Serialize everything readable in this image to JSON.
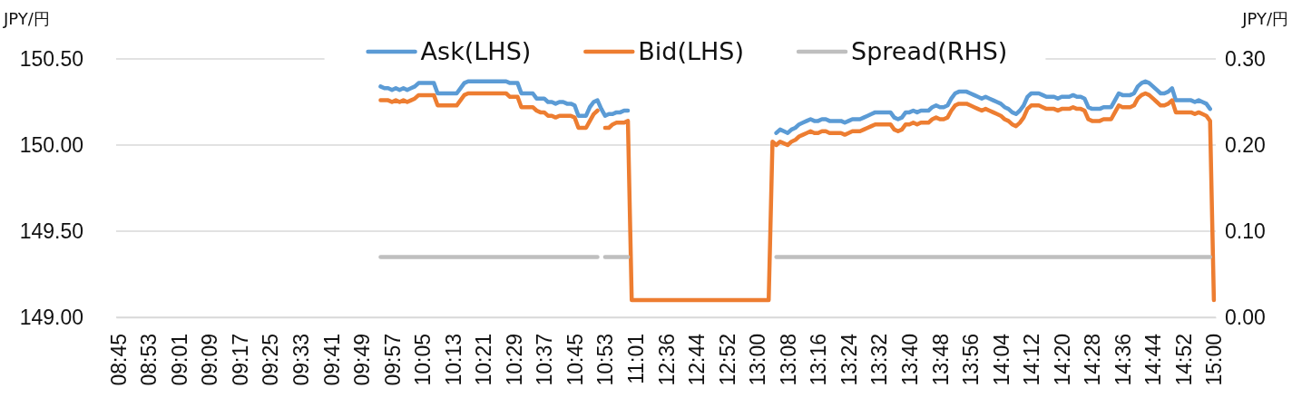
{
  "chart_data": {
    "type": "line",
    "ylabel": "JPY/円",
    "y2label": "JPY/円",
    "categories": [
      "08:45",
      null,
      null,
      null,
      null,
      null,
      null,
      null,
      "08:53",
      null,
      null,
      null,
      null,
      null,
      null,
      null,
      "09:01",
      null,
      null,
      null,
      null,
      null,
      null,
      null,
      "09:09",
      null,
      null,
      null,
      null,
      null,
      null,
      null,
      "09:17",
      null,
      null,
      null,
      null,
      null,
      null,
      null,
      "09:25",
      null,
      null,
      null,
      null,
      null,
      null,
      null,
      "09:33",
      null,
      null,
      null,
      null,
      null,
      null,
      null,
      "09:41",
      null,
      null,
      null,
      null,
      null,
      null,
      null,
      "09:49",
      null,
      null,
      null,
      null,
      null,
      null,
      null,
      "09:57",
      null,
      null,
      null,
      null,
      null,
      null,
      null,
      "10:05",
      null,
      null,
      null,
      null,
      null,
      null,
      null,
      "10:13",
      null,
      null,
      null,
      null,
      null,
      null,
      null,
      "10:21",
      null,
      null,
      null,
      null,
      null,
      null,
      null,
      "10:29",
      null,
      null,
      null,
      null,
      null,
      null,
      null,
      "10:37",
      null,
      null,
      null,
      null,
      null,
      null,
      null,
      "10:45",
      null,
      null,
      null,
      null,
      null,
      null,
      null,
      "10:53",
      null,
      null,
      null,
      null,
      null,
      null,
      null,
      "11:01",
      null,
      null,
      null,
      null,
      null,
      null,
      null,
      "12:36",
      null,
      null,
      null,
      null,
      null,
      null,
      null,
      "12:44",
      null,
      null,
      null,
      null,
      null,
      null,
      null,
      "12:52",
      null,
      null,
      null,
      null,
      null,
      null,
      null,
      "13:00",
      null,
      null,
      null,
      null,
      null,
      null,
      null,
      "13:08",
      null,
      null,
      null,
      null,
      null,
      null,
      null,
      "13:16",
      null,
      null,
      null,
      null,
      null,
      null,
      null,
      "13:24",
      null,
      null,
      null,
      null,
      null,
      null,
      null,
      "13:32",
      null,
      null,
      null,
      null,
      null,
      null,
      null,
      "13:40",
      null,
      null,
      null,
      null,
      null,
      null,
      null,
      "13:48",
      null,
      null,
      null,
      null,
      null,
      null,
      null,
      "13:56",
      null,
      null,
      null,
      null,
      null,
      null,
      null,
      "14:04",
      null,
      null,
      null,
      null,
      null,
      null,
      null,
      "14:12",
      null,
      null,
      null,
      null,
      null,
      null,
      null,
      "14:20",
      null,
      null,
      null,
      null,
      null,
      null,
      null,
      "14:28",
      null,
      null,
      null,
      null,
      null,
      null,
      null,
      "14:36",
      null,
      null,
      null,
      null,
      null,
      null,
      null,
      "14:44",
      null,
      null,
      null,
      null,
      null,
      null,
      null,
      "14:52",
      null,
      null,
      null,
      null,
      null,
      null,
      null,
      "15:00"
    ],
    "series": [
      {
        "name": "Ask(LHS)",
        "color": "#5b9bd5",
        "values": [
          null,
          null,
          null,
          null,
          null,
          null,
          null,
          null,
          null,
          null,
          null,
          null,
          null,
          null,
          null,
          null,
          null,
          null,
          null,
          null,
          null,
          null,
          null,
          null,
          null,
          null,
          null,
          null,
          null,
          null,
          null,
          null,
          null,
          null,
          null,
          null,
          null,
          null,
          null,
          null,
          null,
          null,
          null,
          null,
          null,
          null,
          null,
          null,
          null,
          null,
          null,
          null,
          null,
          null,
          null,
          null,
          null,
          null,
          null,
          null,
          null,
          null,
          null,
          null,
          null,
          null,
          null,
          null,
          null,
          150.34,
          150.33,
          150.33,
          150.32,
          150.33,
          150.32,
          150.33,
          150.32,
          150.33,
          150.34,
          150.36,
          150.36,
          150.36,
          150.36,
          150.36,
          150.3,
          150.3,
          150.3,
          150.3,
          150.3,
          150.3,
          150.33,
          150.36,
          150.37,
          150.37,
          150.37,
          150.37,
          150.37,
          150.37,
          150.37,
          150.37,
          150.37,
          150.37,
          150.37,
          150.36,
          150.36,
          150.36,
          150.3,
          150.3,
          150.3,
          150.3,
          150.27,
          150.27,
          150.27,
          150.25,
          150.25,
          150.24,
          150.25,
          150.25,
          150.24,
          150.24,
          150.23,
          150.17,
          150.17,
          150.17,
          150.22,
          150.25,
          150.26,
          150.21,
          150.17,
          150.18,
          150.18,
          150.19,
          150.19,
          150.2,
          150.2,
          null,
          null,
          null,
          null,
          null,
          null,
          null,
          null,
          null,
          null,
          null,
          null,
          null,
          null,
          null,
          null,
          null,
          null,
          null,
          null,
          null,
          null,
          null,
          null,
          null,
          null,
          null,
          null,
          null,
          null,
          null,
          null,
          null,
          null,
          null,
          null,
          null,
          null,
          150.07,
          150.09,
          150.08,
          150.07,
          150.09,
          150.1,
          150.12,
          150.13,
          150.14,
          150.15,
          150.14,
          150.14,
          150.15,
          150.15,
          150.14,
          150.14,
          150.14,
          150.14,
          150.13,
          150.14,
          150.15,
          150.15,
          150.15,
          150.16,
          150.17,
          150.18,
          150.19,
          150.19,
          150.19,
          150.19,
          150.19,
          150.16,
          150.15,
          150.16,
          150.19,
          150.19,
          150.2,
          150.19,
          150.2,
          150.2,
          150.2,
          150.22,
          150.23,
          150.22,
          150.22,
          150.23,
          150.27,
          150.3,
          150.31,
          150.31,
          150.31,
          150.3,
          150.29,
          150.28,
          150.27,
          150.28,
          150.27,
          150.26,
          150.25,
          150.24,
          150.22,
          150.21,
          150.19,
          150.18,
          150.2,
          150.23,
          150.28,
          150.3,
          150.3,
          150.3,
          150.29,
          150.28,
          150.28,
          150.28,
          150.27,
          150.28,
          150.28,
          150.28,
          150.29,
          150.28,
          150.28,
          150.27,
          150.22,
          150.21,
          150.21,
          150.21,
          150.22,
          150.22,
          150.22,
          150.26,
          150.3,
          150.29,
          150.29,
          150.29,
          150.3,
          150.34,
          150.36,
          150.37,
          150.36,
          150.34,
          150.32,
          150.3,
          150.3,
          150.31,
          150.33,
          150.26,
          150.26,
          150.26,
          150.26,
          150.26,
          150.25,
          150.26,
          150.25,
          150.24,
          150.21,
          null
        ]
      },
      {
        "name": "Bid(LHS)",
        "color": "#ed7d31",
        "values": [
          null,
          null,
          null,
          null,
          null,
          null,
          null,
          null,
          null,
          null,
          null,
          null,
          null,
          null,
          null,
          null,
          null,
          null,
          null,
          null,
          null,
          null,
          null,
          null,
          null,
          null,
          null,
          null,
          null,
          null,
          null,
          null,
          null,
          null,
          null,
          null,
          null,
          null,
          null,
          null,
          null,
          null,
          null,
          null,
          null,
          null,
          null,
          null,
          null,
          null,
          null,
          null,
          null,
          null,
          null,
          null,
          null,
          null,
          null,
          null,
          null,
          null,
          null,
          null,
          null,
          null,
          null,
          null,
          null,
          150.26,
          150.26,
          150.26,
          150.25,
          150.26,
          150.25,
          150.26,
          150.25,
          150.26,
          150.27,
          150.29,
          150.29,
          150.29,
          150.29,
          150.29,
          150.23,
          150.23,
          150.23,
          150.23,
          150.23,
          150.23,
          150.26,
          150.29,
          150.3,
          150.3,
          150.3,
          150.3,
          150.3,
          150.3,
          150.3,
          150.3,
          150.3,
          150.3,
          150.3,
          150.28,
          150.28,
          150.28,
          150.22,
          150.22,
          150.22,
          150.22,
          150.2,
          150.19,
          150.19,
          150.17,
          150.17,
          150.16,
          150.17,
          150.17,
          150.17,
          150.17,
          150.16,
          150.1,
          150.1,
          150.1,
          150.14,
          150.18,
          150.2,
          null,
          150.1,
          150.1,
          150.12,
          150.13,
          150.13,
          150.13,
          150.14,
          149.1,
          149.1,
          149.1,
          149.1,
          149.1,
          149.1,
          149.1,
          149.1,
          149.1,
          149.1,
          149.1,
          149.1,
          149.1,
          149.1,
          149.1,
          149.1,
          149.1,
          149.1,
          149.1,
          149.1,
          149.1,
          149.1,
          149.1,
          149.1,
          149.1,
          149.1,
          149.1,
          149.1,
          149.1,
          149.1,
          149.1,
          149.1,
          149.1,
          149.1,
          149.1,
          149.1,
          149.1,
          150.02,
          150.0,
          150.02,
          150.01,
          150.0,
          150.02,
          150.03,
          150.05,
          150.06,
          150.07,
          150.08,
          150.07,
          150.07,
          150.08,
          150.08,
          150.07,
          150.07,
          150.07,
          150.07,
          150.06,
          150.07,
          150.08,
          150.08,
          150.08,
          150.09,
          150.1,
          150.11,
          150.12,
          150.12,
          150.12,
          150.12,
          150.12,
          150.09,
          150.08,
          150.09,
          150.12,
          150.12,
          150.13,
          150.12,
          150.13,
          150.13,
          150.13,
          150.15,
          150.16,
          150.15,
          150.15,
          150.16,
          150.2,
          150.23,
          150.24,
          150.24,
          150.24,
          150.23,
          150.22,
          150.21,
          150.2,
          150.21,
          150.2,
          150.19,
          150.18,
          150.17,
          150.15,
          150.14,
          150.12,
          150.11,
          150.13,
          150.16,
          150.21,
          150.23,
          150.23,
          150.23,
          150.22,
          150.21,
          150.21,
          150.21,
          150.2,
          150.21,
          150.21,
          150.21,
          150.22,
          150.21,
          150.21,
          150.2,
          150.15,
          150.14,
          150.14,
          150.14,
          150.15,
          150.15,
          150.15,
          150.19,
          150.23,
          150.22,
          150.22,
          150.22,
          150.23,
          150.27,
          150.29,
          150.3,
          150.29,
          150.27,
          150.25,
          150.23,
          150.23,
          150.24,
          150.26,
          150.19,
          150.19,
          150.19,
          150.19,
          150.19,
          150.18,
          150.19,
          150.18,
          150.17,
          150.14,
          149.1
        ]
      },
      {
        "name": "Spread(RHS)",
        "color": "#bfbfbf",
        "axis": "y2",
        "values": [
          null,
          null,
          null,
          null,
          null,
          null,
          null,
          null,
          null,
          null,
          null,
          null,
          null,
          null,
          null,
          null,
          null,
          null,
          null,
          null,
          null,
          null,
          null,
          null,
          null,
          null,
          null,
          null,
          null,
          null,
          null,
          null,
          null,
          null,
          null,
          null,
          null,
          null,
          null,
          null,
          null,
          null,
          null,
          null,
          null,
          null,
          null,
          null,
          null,
          null,
          null,
          null,
          null,
          null,
          null,
          null,
          null,
          null,
          null,
          null,
          null,
          null,
          null,
          null,
          null,
          null,
          null,
          null,
          null,
          0.07,
          0.07,
          0.07,
          0.07,
          0.07,
          0.07,
          0.07,
          0.07,
          0.07,
          0.07,
          0.07,
          0.07,
          0.07,
          0.07,
          0.07,
          0.07,
          0.07,
          0.07,
          0.07,
          0.07,
          0.07,
          0.07,
          0.07,
          0.07,
          0.07,
          0.07,
          0.07,
          0.07,
          0.07,
          0.07,
          0.07,
          0.07,
          0.07,
          0.07,
          0.07,
          0.07,
          0.07,
          0.07,
          0.07,
          0.07,
          0.07,
          0.07,
          0.07,
          0.07,
          0.07,
          0.07,
          0.07,
          0.07,
          0.07,
          0.07,
          0.07,
          0.07,
          0.07,
          0.07,
          0.07,
          0.07,
          0.07,
          0.07,
          null,
          0.07,
          0.07,
          0.07,
          0.07,
          0.07,
          0.07,
          0.07,
          null,
          null,
          null,
          null,
          null,
          null,
          null,
          null,
          null,
          null,
          null,
          null,
          null,
          null,
          null,
          null,
          null,
          null,
          null,
          null,
          null,
          null,
          null,
          null,
          null,
          null,
          null,
          null,
          null,
          null,
          null,
          null,
          null,
          null,
          null,
          null,
          null,
          null,
          0.07,
          0.07,
          0.07,
          0.07,
          0.07,
          0.07,
          0.07,
          0.07,
          0.07,
          0.07,
          0.07,
          0.07,
          0.07,
          0.07,
          0.07,
          0.07,
          0.07,
          0.07,
          0.07,
          0.07,
          0.07,
          0.07,
          0.07,
          0.07,
          0.07,
          0.07,
          0.07,
          0.07,
          0.07,
          0.07,
          0.07,
          0.07,
          0.07,
          0.07,
          0.07,
          0.07,
          0.07,
          0.07,
          0.07,
          0.07,
          0.07,
          0.07,
          0.07,
          0.07,
          0.07,
          0.07,
          0.07,
          0.07,
          0.07,
          0.07,
          0.07,
          0.07,
          0.07,
          0.07,
          0.07,
          0.07,
          0.07,
          0.07,
          0.07,
          0.07,
          0.07,
          0.07,
          0.07,
          0.07,
          0.07,
          0.07,
          0.07,
          0.07,
          0.07,
          0.07,
          0.07,
          0.07,
          0.07,
          0.07,
          0.07,
          0.07,
          0.07,
          0.07,
          0.07,
          0.07,
          0.07,
          0.07,
          0.07,
          0.07,
          0.07,
          0.07,
          0.07,
          0.07,
          0.07,
          0.07,
          0.07,
          0.07,
          0.07,
          0.07,
          0.07,
          0.07,
          0.07,
          0.07,
          0.07,
          0.07,
          0.07,
          0.07,
          0.07,
          0.07,
          0.07,
          0.07,
          0.07,
          0.07,
          0.07,
          0.07,
          0.07,
          0.07,
          0.07,
          0.07,
          0.07,
          null
        ]
      }
    ],
    "ylim": [
      149,
      150.5
    ],
    "yticks": [
      {
        "value": 149,
        "label": "149.00"
      },
      {
        "value": 149.5,
        "label": "149.50"
      },
      {
        "value": 150,
        "label": "150.00"
      },
      {
        "value": 150.5,
        "label": "150.50"
      }
    ],
    "y2lim": [
      0,
      0.3
    ],
    "y2ticks": [
      {
        "value": 0,
        "label": "0.00"
      },
      {
        "value": 0.1,
        "label": "0.10"
      },
      {
        "value": 0.2,
        "label": "0.20"
      },
      {
        "value": 0.3,
        "label": "0.30"
      }
    ],
    "grid": "y",
    "legend": "top"
  }
}
